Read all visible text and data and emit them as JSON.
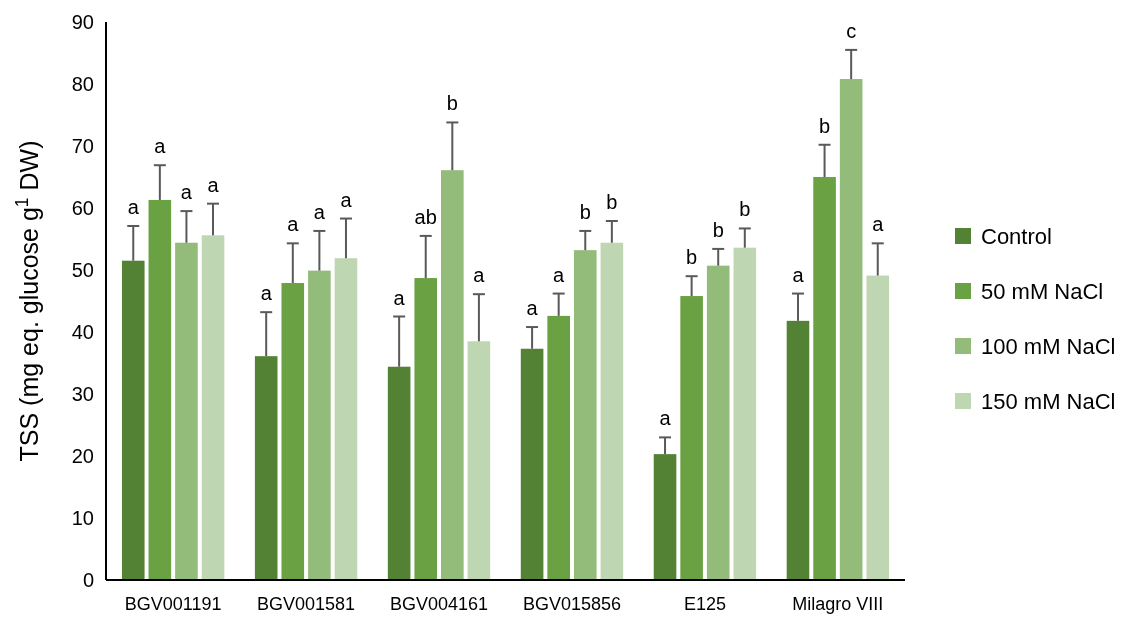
{
  "chart_data": {
    "type": "bar",
    "ylabel": "TSS (mg eq. glucose g$^{1}$ DW)",
    "categories": [
      "BGV001191",
      "BGV001581",
      "BGV004161",
      "BGV015856",
      "E125",
      "Milagro VIII"
    ],
    "series": [
      {
        "name": "Control",
        "color": "#548235",
        "values": [
          51.5,
          36.1,
          34.4,
          37.3,
          20.3,
          41.8
        ],
        "errors": [
          5.6,
          7.1,
          8.1,
          3.5,
          2.7,
          4.4
        ]
      },
      {
        "name": "50 mM NaCl",
        "color": "#6aa142",
        "values": [
          61.3,
          47.9,
          48.7,
          42.6,
          45.8,
          65.0
        ],
        "errors": [
          5.6,
          6.4,
          6.8,
          3.6,
          3.2,
          5.2
        ]
      },
      {
        "name": "100 mM NaCl",
        "color": "#93bb7a",
        "values": [
          54.4,
          49.9,
          66.1,
          53.2,
          50.7,
          80.8
        ],
        "errors": [
          5.1,
          6.4,
          7.7,
          3.1,
          2.7,
          4.7
        ]
      },
      {
        "name": "150 mM NaCl",
        "color": "#bfd6b2",
        "values": [
          55.6,
          51.9,
          38.5,
          54.4,
          53.6,
          49.1
        ],
        "errors": [
          5.1,
          6.4,
          7.6,
          3.5,
          3.1,
          5.2
        ]
      }
    ],
    "annotations": [
      "a",
      "a",
      "a",
      "a",
      "a",
      "a",
      "a",
      "a",
      "a",
      "ab",
      "b",
      "a",
      "a",
      "a",
      "b",
      "b",
      "a",
      "b",
      "b",
      "b",
      "a",
      "b",
      "c",
      "a"
    ],
    "ylim": [
      0,
      90
    ],
    "yticks": [
      0,
      10,
      20,
      30,
      40,
      50,
      60,
      70,
      80,
      90
    ],
    "legend": "right"
  }
}
